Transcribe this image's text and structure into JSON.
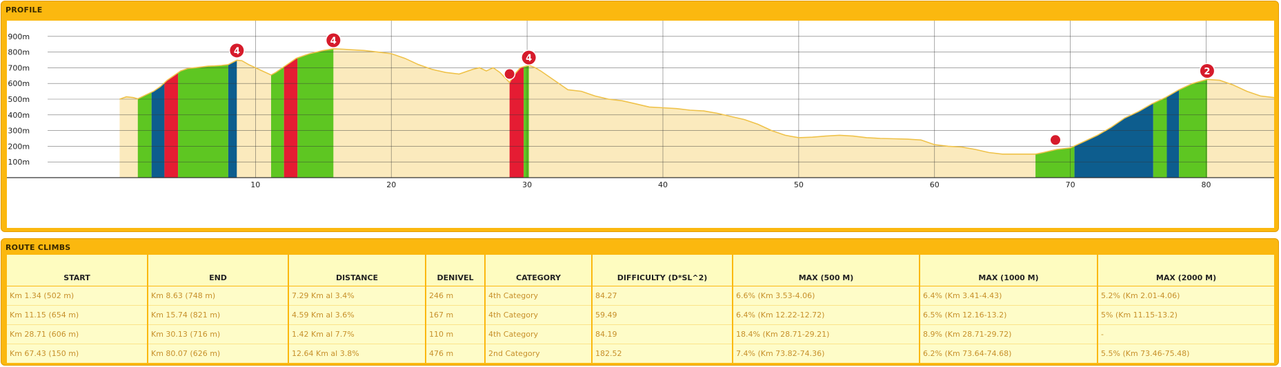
{
  "sections": {
    "profile_title": "PROFILE",
    "climbs_title": "ROUTE CLIMBS"
  },
  "colors": {
    "panel": "#fbb80f",
    "fill": "#fbeabd",
    "line": "#efc24a",
    "green": "#5ec622",
    "blue": "#0d5d8e",
    "red": "#e51c33",
    "marker": "#d61b2b",
    "table_text": "#c7902a"
  },
  "chart_data": {
    "type": "area",
    "title": "",
    "xlabel": "",
    "ylabel": "",
    "xlim": [
      -8.3,
      85
    ],
    "ylim": [
      0,
      1000
    ],
    "y_ticks": [
      100,
      200,
      300,
      400,
      500,
      600,
      700,
      800,
      900
    ],
    "y_tick_labels": [
      "100m",
      "200m",
      "300m",
      "400m",
      "500m",
      "600m",
      "700m",
      "800m",
      "900m"
    ],
    "x_ticks": [
      10,
      20,
      30,
      40,
      50,
      60,
      70,
      80
    ],
    "x_tick_labels": [
      "10",
      "20",
      "30",
      "40",
      "50",
      "60",
      "70",
      "80"
    ],
    "grid": true,
    "profile": {
      "km": [
        0,
        0.5,
        1.0,
        1.34,
        2.0,
        2.5,
        3.0,
        3.5,
        4.0,
        4.5,
        5.0,
        5.5,
        6.0,
        6.5,
        7.0,
        7.5,
        8.0,
        8.63,
        9.0,
        9.5,
        10.0,
        10.5,
        11.15,
        11.5,
        12.0,
        12.5,
        13.0,
        13.5,
        14.0,
        14.5,
        15.0,
        15.74,
        16.5,
        17.0,
        18.0,
        19.0,
        20.0,
        21.0,
        22.0,
        23.0,
        24.0,
        25.0,
        26.0,
        26.5,
        27.0,
        27.5,
        28.0,
        28.71,
        29.0,
        29.5,
        30.13,
        30.6,
        31.0,
        32.0,
        33.0,
        34.0,
        35.0,
        36.0,
        37.0,
        38.0,
        39.0,
        40.0,
        41.0,
        42.0,
        43.0,
        44.0,
        45.0,
        46.0,
        47.0,
        48.0,
        49.0,
        50.0,
        51.0,
        52.0,
        53.0,
        54.0,
        55.0,
        56.0,
        57.0,
        58.0,
        59.0,
        60.0,
        61.0,
        62.0,
        63.0,
        64.0,
        65.0,
        66.0,
        67.43,
        68.0,
        69.0,
        70.0,
        71.0,
        72.0,
        73.0,
        74.0,
        75.0,
        76.0,
        77.0,
        78.0,
        79.0,
        80.07,
        81.0,
        82.0,
        83.0,
        84.0,
        85.0
      ],
      "elevation": [
        500,
        515,
        510,
        502,
        530,
        550,
        580,
        620,
        650,
        680,
        695,
        700,
        705,
        710,
        712,
        715,
        720,
        748,
        745,
        720,
        700,
        680,
        654,
        670,
        700,
        730,
        760,
        775,
        790,
        800,
        810,
        821,
        818,
        815,
        810,
        800,
        790,
        760,
        720,
        690,
        670,
        660,
        690,
        700,
        680,
        700,
        670,
        606,
        650,
        700,
        716,
        700,
        680,
        620,
        560,
        550,
        520,
        500,
        490,
        470,
        450,
        445,
        440,
        430,
        425,
        410,
        390,
        370,
        340,
        300,
        270,
        255,
        258,
        265,
        270,
        265,
        255,
        250,
        248,
        245,
        240,
        210,
        200,
        195,
        180,
        160,
        150,
        150,
        150,
        160,
        180,
        190,
        230,
        270,
        320,
        380,
        420,
        470,
        510,
        560,
        600,
        626,
        620,
        590,
        550,
        520,
        510
      ]
    },
    "climb_segments": [
      {
        "from": 1.34,
        "to": 2.35,
        "color": "green"
      },
      {
        "from": 2.35,
        "to": 3.3,
        "color": "blue"
      },
      {
        "from": 3.3,
        "to": 4.3,
        "color": "red"
      },
      {
        "from": 4.3,
        "to": 8.0,
        "color": "green"
      },
      {
        "from": 8.0,
        "to": 8.63,
        "color": "blue"
      },
      {
        "from": 11.15,
        "to": 12.1,
        "color": "green"
      },
      {
        "from": 12.1,
        "to": 13.1,
        "color": "red"
      },
      {
        "from": 13.1,
        "to": 15.74,
        "color": "green"
      },
      {
        "from": 28.71,
        "to": 29.75,
        "color": "red"
      },
      {
        "from": 29.75,
        "to": 30.13,
        "color": "green"
      },
      {
        "from": 67.43,
        "to": 70.3,
        "color": "green"
      },
      {
        "from": 70.3,
        "to": 76.1,
        "color": "blue"
      },
      {
        "from": 76.1,
        "to": 77.1,
        "color": "green"
      },
      {
        "from": 77.1,
        "to": 78.0,
        "color": "blue"
      },
      {
        "from": 78.0,
        "to": 80.07,
        "color": "green"
      }
    ],
    "markers": [
      {
        "km": 8.63,
        "elevation": 810,
        "label": "4"
      },
      {
        "km": 15.74,
        "elevation": 875,
        "label": "4"
      },
      {
        "km": 30.13,
        "elevation": 765,
        "label": "4"
      },
      {
        "km": 80.07,
        "elevation": 680,
        "label": "2"
      },
      {
        "km": 28.71,
        "elevation": 660,
        "label": ""
      },
      {
        "km": 68.9,
        "elevation": 240,
        "label": ""
      }
    ]
  },
  "table": {
    "headers": [
      "START",
      "END",
      "DISTANCE",
      "DENIVEL",
      "CATEGORY",
      "DIFFICULTY (D*SL^2)",
      "MAX (500 M)",
      "MAX (1000 M)",
      "MAX (2000 M)"
    ],
    "rows": [
      [
        "Km 1.34 (502 m)",
        "Km 8.63 (748 m)",
        "7.29 Km al 3.4%",
        "246 m",
        "4th Category",
        "84.27",
        "6.6% (Km 3.53-4.06)",
        "6.4% (Km 3.41-4.43)",
        "5.2% (Km 2.01-4.06)"
      ],
      [
        "Km 11.15 (654 m)",
        "Km 15.74 (821 m)",
        "4.59 Km al 3.6%",
        "167 m",
        "4th Category",
        "59.49",
        "6.4% (Km 12.22-12.72)",
        "6.5% (Km 12.16-13.2)",
        "5% (Km 11.15-13.2)"
      ],
      [
        "Km 28.71 (606 m)",
        "Km 30.13 (716 m)",
        "1.42 Km al 7.7%",
        "110 m",
        "4th Category",
        "84.19",
        "18.4% (Km 28.71-29.21)",
        "8.9% (Km 28.71-29.72)",
        "-"
      ],
      [
        "Km 67.43 (150 m)",
        "Km 80.07 (626 m)",
        "12.64 Km al 3.8%",
        "476 m",
        "2nd Category",
        "182.52",
        "7.4% (Km 73.82-74.36)",
        "6.2% (Km 73.64-74.68)",
        "5.5% (Km 73.46-75.48)"
      ]
    ]
  }
}
